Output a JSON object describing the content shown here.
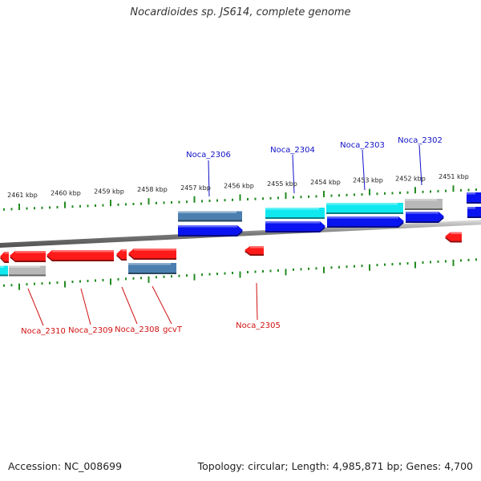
{
  "title": "Nocardioides sp. JS614, complete genome",
  "footer": {
    "accession": "Accession: NC_008699",
    "summary": "Topology: circular; Length: 4,985,871 bp; Genes: 4,700"
  },
  "colors": {
    "label_top": "#1010c8",
    "label_bottom": "#d01010",
    "gene_red": "#ff1a1a",
    "gene_blue": "#0a14f0",
    "gene_cyan": "#10e8f0",
    "gene_steel": "#4a7fb0",
    "gene_gray": "#b8b8b8",
    "tick_green": "#228b22",
    "backbone": "#8a8a8a"
  },
  "kbp_labels": [
    "2461 kbp",
    "2460 kbp",
    "2459 kbp",
    "2458 kbp",
    "2457 kbp",
    "2456 kbp",
    "2455 kbp",
    "2454 kbp",
    "2453 kbp",
    "2452 kbp",
    "2451 kbp"
  ],
  "gene_labels_top": [
    "Noca_2306",
    "Noca_2304",
    "Noca_2303",
    "Noca_2302"
  ],
  "gene_labels_bottom": [
    "Noca_2310",
    "Noca_2309",
    "Noca_2308",
    "gcvT",
    "Noca_2305"
  ]
}
